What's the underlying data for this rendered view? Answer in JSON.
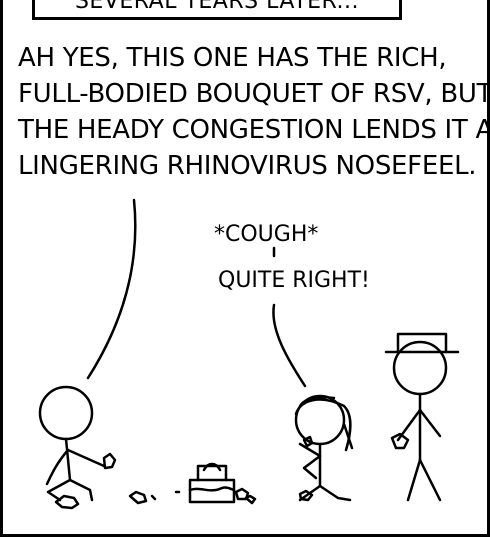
{
  "caption": {
    "text": "SEVERAL YEARS LATER..."
  },
  "dialogue": {
    "main_speech": [
      "AH YES, THIS ONE HAS THE RICH,",
      "FULL-BODIED BOUQUET OF RSV, BUT",
      "THE HEADY CONGESTION LENDS IT A",
      "LINGERING RHINOVIRUS NOSEFEEL."
    ],
    "cough": "*COUGH*",
    "reply": "QUITE RIGHT!"
  }
}
